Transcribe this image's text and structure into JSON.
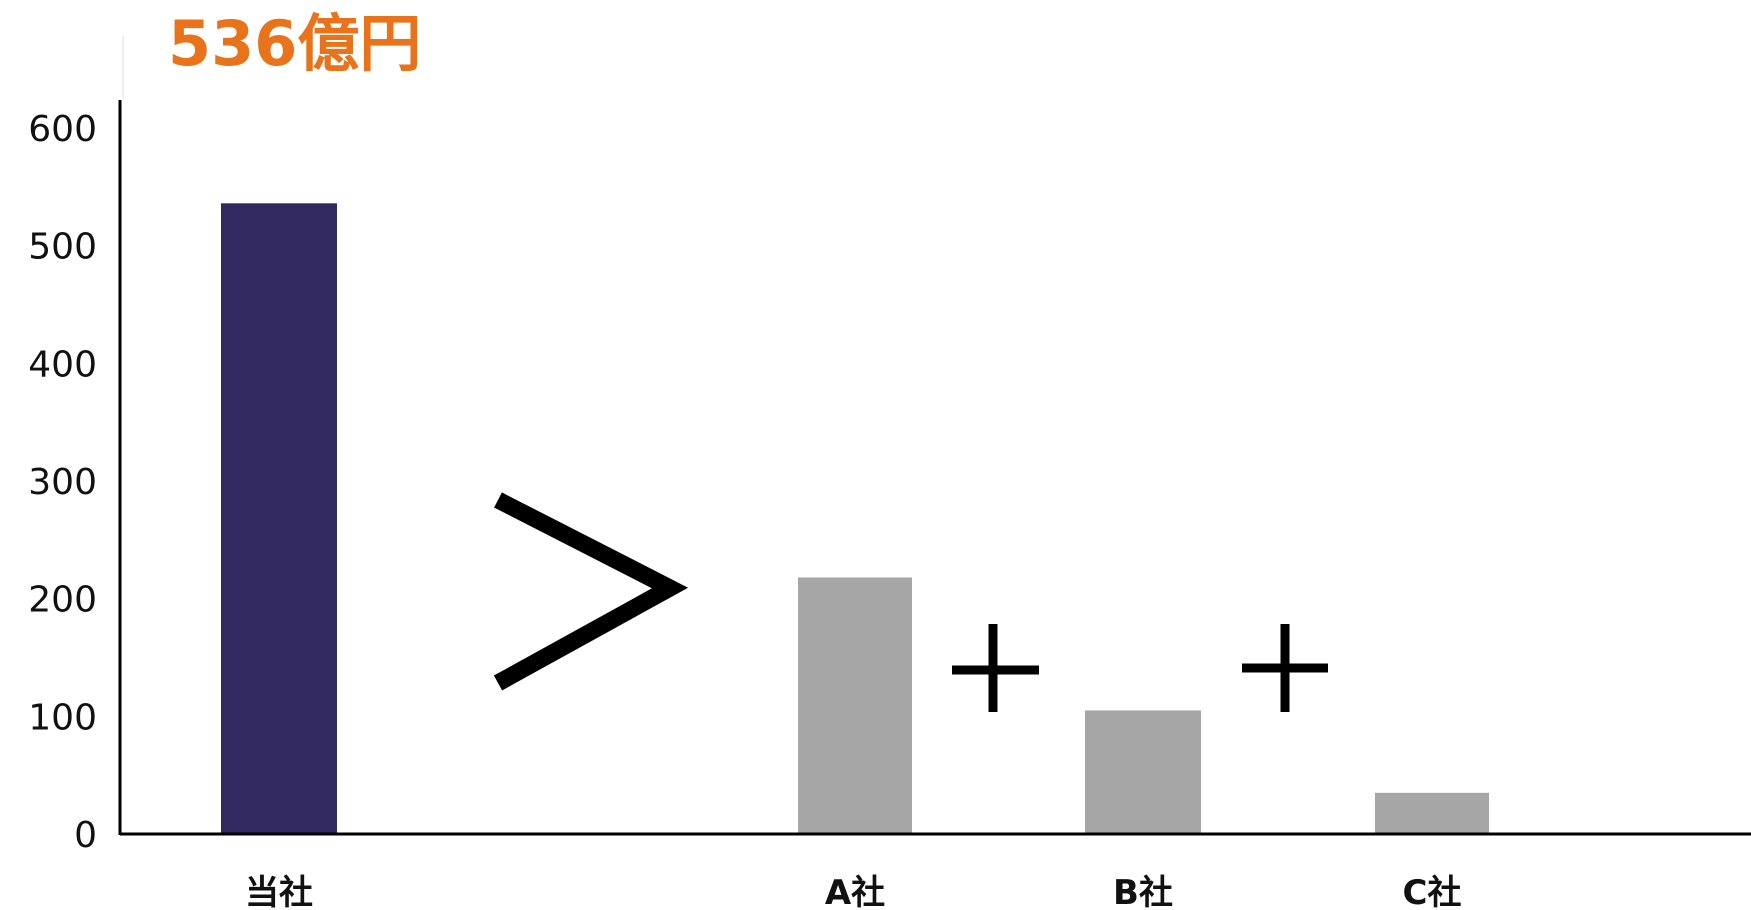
{
  "chart_data": {
    "type": "bar",
    "categories": [
      "当社",
      "A社",
      "B社",
      "C社"
    ],
    "values": [
      536,
      218,
      105,
      35
    ],
    "ylim": [
      0,
      600
    ],
    "yticks": [
      0,
      100,
      200,
      300,
      400,
      500,
      600
    ],
    "grid": false,
    "annotation": "536億円",
    "symbols": [
      ">",
      "+",
      "+"
    ],
    "colors": {
      "highlight_bar": "#322960",
      "other_bars": "#a6a6a6",
      "annotation": "#e8731a",
      "axis": "#000000"
    }
  }
}
